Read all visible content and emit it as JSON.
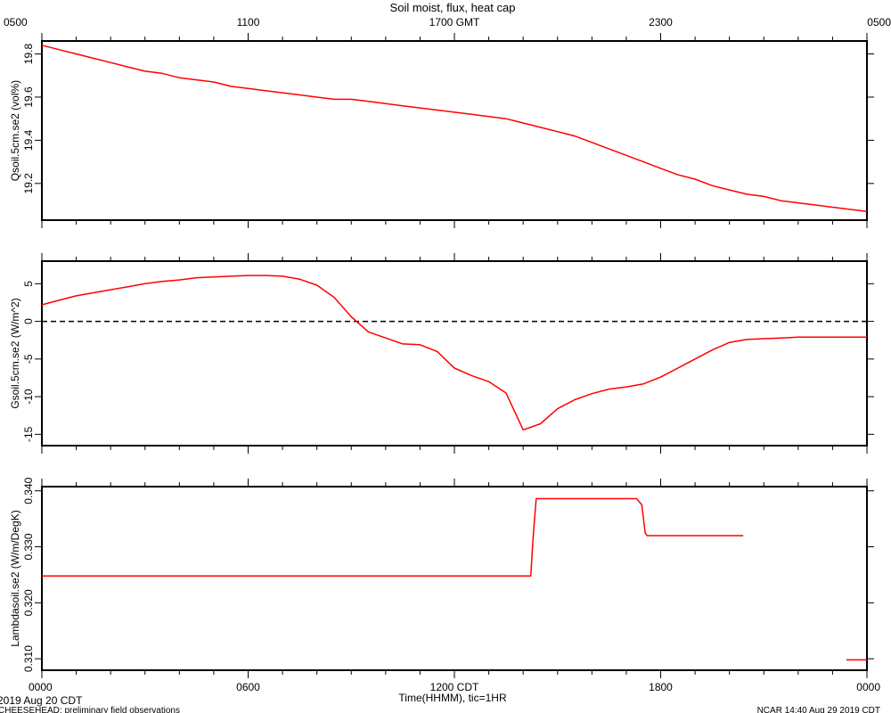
{
  "title": "Soil moist, flux, heat cap",
  "top_axis": {
    "labels": [
      "0500",
      "1100",
      "1700 GMT",
      "2300",
      "0500"
    ]
  },
  "bottom_axis": {
    "labels": [
      "0000",
      "0600",
      "1200 CDT",
      "1800",
      "0000"
    ],
    "xlabel": "Time(HHMM), tic=1HR"
  },
  "footer": {
    "date": "2019 Aug 20 CDT",
    "project": "CHEESEHEAD: preliminary field observations",
    "stamp": "NCAR 14:40 Aug 29 2019 CDT"
  },
  "colors": {
    "series": "#ff0000",
    "axes": "#000000",
    "zero_line": "#000000"
  },
  "chart_data": [
    {
      "type": "line",
      "ylabel": "Qsoil.5cm.se2 (vol%)",
      "xlim": [
        0,
        24
      ],
      "ylim": [
        19.03,
        19.86
      ],
      "yticks": [
        19.2,
        19.4,
        19.6,
        19.8
      ],
      "ytick_labels": [
        "19.2",
        "19.4",
        "19.6",
        "19.8"
      ],
      "grid": false,
      "series": [
        {
          "x": [
            0,
            0.5,
            1,
            1.5,
            2,
            2.5,
            3,
            3.5,
            4,
            4.5,
            5,
            5.5,
            6,
            6.5,
            7,
            7.5,
            8,
            8.5,
            9,
            9.5,
            10,
            10.5,
            11,
            11.5,
            12,
            12.5,
            13,
            13.5,
            14,
            14.5,
            15,
            15.5,
            16,
            16.5,
            17,
            17.5,
            18,
            18.5,
            19,
            19.5,
            20,
            20.5,
            21,
            21.5,
            22,
            22.5,
            23,
            23.5,
            24
          ],
          "y": [
            19.84,
            19.82,
            19.8,
            19.78,
            19.76,
            19.74,
            19.72,
            19.71,
            19.69,
            19.68,
            19.67,
            19.65,
            19.64,
            19.63,
            19.62,
            19.61,
            19.6,
            19.59,
            19.59,
            19.58,
            19.57,
            19.56,
            19.55,
            19.54,
            19.53,
            19.52,
            19.51,
            19.5,
            19.48,
            19.46,
            19.44,
            19.42,
            19.39,
            19.36,
            19.33,
            19.3,
            19.27,
            19.24,
            19.22,
            19.19,
            19.17,
            19.15,
            19.14,
            19.12,
            19.11,
            19.1,
            19.09,
            19.08,
            19.07
          ]
        }
      ]
    },
    {
      "type": "line",
      "ylabel": "Gsoil.5cm.se2 (W/m^2)",
      "xlim": [
        0,
        24
      ],
      "ylim": [
        -16.5,
        8
      ],
      "yticks": [
        -15,
        -10,
        -5,
        0,
        5
      ],
      "ytick_labels": [
        "-15",
        "-10",
        "-5",
        "0",
        "5"
      ],
      "zero_line": 0,
      "grid": false,
      "series": [
        {
          "x": [
            0,
            0.5,
            1,
            1.5,
            2,
            2.5,
            3,
            3.5,
            4,
            4.5,
            5,
            5.5,
            6,
            6.5,
            7,
            7.5,
            8,
            8.5,
            9,
            9.5,
            10,
            10.5,
            11,
            11.5,
            12,
            12.5,
            13,
            13.5,
            14,
            14.5,
            15,
            15.5,
            16,
            16.5,
            17,
            17.5,
            18,
            18.5,
            19,
            19.5,
            20,
            20.5,
            21,
            21.5,
            22,
            22.5,
            23,
            23.5,
            24
          ],
          "y": [
            2.2,
            2.8,
            3.4,
            3.8,
            4.2,
            4.6,
            5.0,
            5.3,
            5.5,
            5.8,
            5.9,
            6.0,
            6.1,
            6.1,
            6.0,
            5.6,
            4.8,
            3.2,
            0.6,
            -1.4,
            -2.2,
            -3.0,
            -3.1,
            -4.0,
            -6.2,
            -7.2,
            -8.0,
            -9.5,
            -14.4,
            -13.6,
            -11.6,
            -10.4,
            -9.6,
            -9.0,
            -8.7,
            -8.3,
            -7.4,
            -6.2,
            -5.0,
            -3.8,
            -2.8,
            -2.4,
            -2.3,
            -2.2,
            -2.1,
            -2.1,
            -2.1,
            -2.1,
            -2.1
          ]
        }
      ]
    },
    {
      "type": "line",
      "ylabel": "Lambdasoil.se2 (W/m/DegK)",
      "xlim": [
        0,
        24
      ],
      "ylim": [
        0.30795,
        0.34075
      ],
      "yticks": [
        0.31,
        0.32,
        0.33,
        0.34
      ],
      "ytick_labels": [
        "0.310",
        "0.320",
        "0.330",
        "0.340"
      ],
      "grid": false,
      "series": [
        {
          "x": [
            0,
            14.22,
            14.3,
            14.38,
            17.3,
            17.45,
            17.55,
            17.6,
            20.4
          ],
          "y": [
            0.3248,
            0.3248,
            0.3325,
            0.3386,
            0.3386,
            0.3375,
            0.3325,
            0.332,
            0.332
          ]
        },
        {
          "x": [
            23.4,
            24
          ],
          "y": [
            0.3098,
            0.3098
          ]
        }
      ]
    }
  ]
}
